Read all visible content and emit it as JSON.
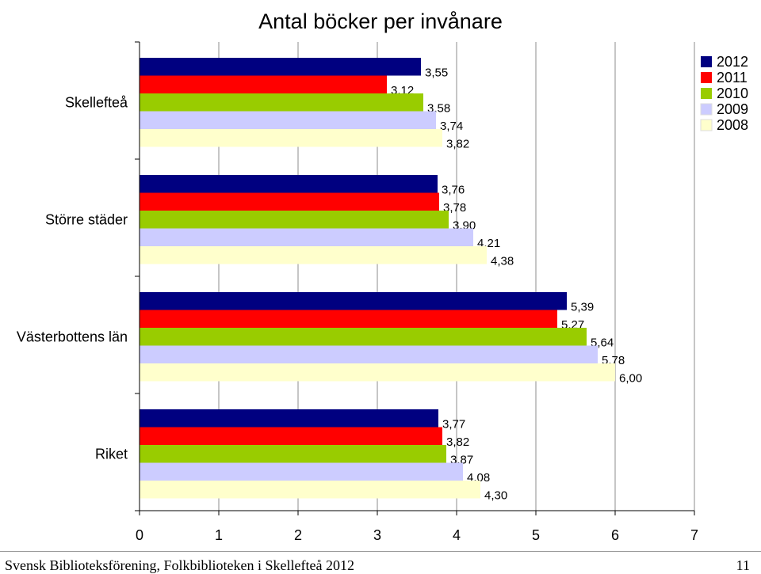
{
  "chart_data": {
    "type": "bar",
    "orientation": "horizontal",
    "title": "Antal böcker per invånare",
    "categories": [
      "Skellefteå",
      "Större städer",
      "Västerbottens län",
      "Riket"
    ],
    "series": [
      {
        "name": "2012",
        "color": "#000080",
        "values": [
          3.55,
          3.76,
          5.39,
          3.77
        ],
        "labels": [
          "3,55",
          "3,76",
          "5,39",
          "3,77"
        ]
      },
      {
        "name": "2011",
        "color": "#ff0000",
        "values": [
          3.12,
          3.78,
          5.27,
          3.82
        ],
        "labels": [
          "3,12",
          "3,78",
          "5,27",
          "3,82"
        ]
      },
      {
        "name": "2010",
        "color": "#99cc00",
        "values": [
          3.58,
          3.9,
          5.64,
          3.87
        ],
        "labels": [
          "3,58",
          "3,90",
          "5,64",
          "3,87"
        ]
      },
      {
        "name": "2009",
        "color": "#ccccff",
        "values": [
          3.74,
          4.21,
          5.78,
          4.08
        ],
        "labels": [
          "3,74",
          "4,21",
          "5,78",
          "4,08"
        ]
      },
      {
        "name": "2008",
        "color": "#ffffcc",
        "values": [
          3.82,
          4.38,
          6.0,
          4.3
        ],
        "labels": [
          "3,82",
          "4,38",
          "6,00",
          "4,30"
        ]
      }
    ],
    "xlim": [
      0,
      7
    ],
    "xticks": [
      "0",
      "1",
      "2",
      "3",
      "4",
      "5",
      "6",
      "7"
    ],
    "grid": true,
    "legend_position": "top-right"
  },
  "footer": {
    "text": "Svensk Biblioteksförening, Folkbiblioteken i Skellefteå 2012",
    "page": "11"
  }
}
